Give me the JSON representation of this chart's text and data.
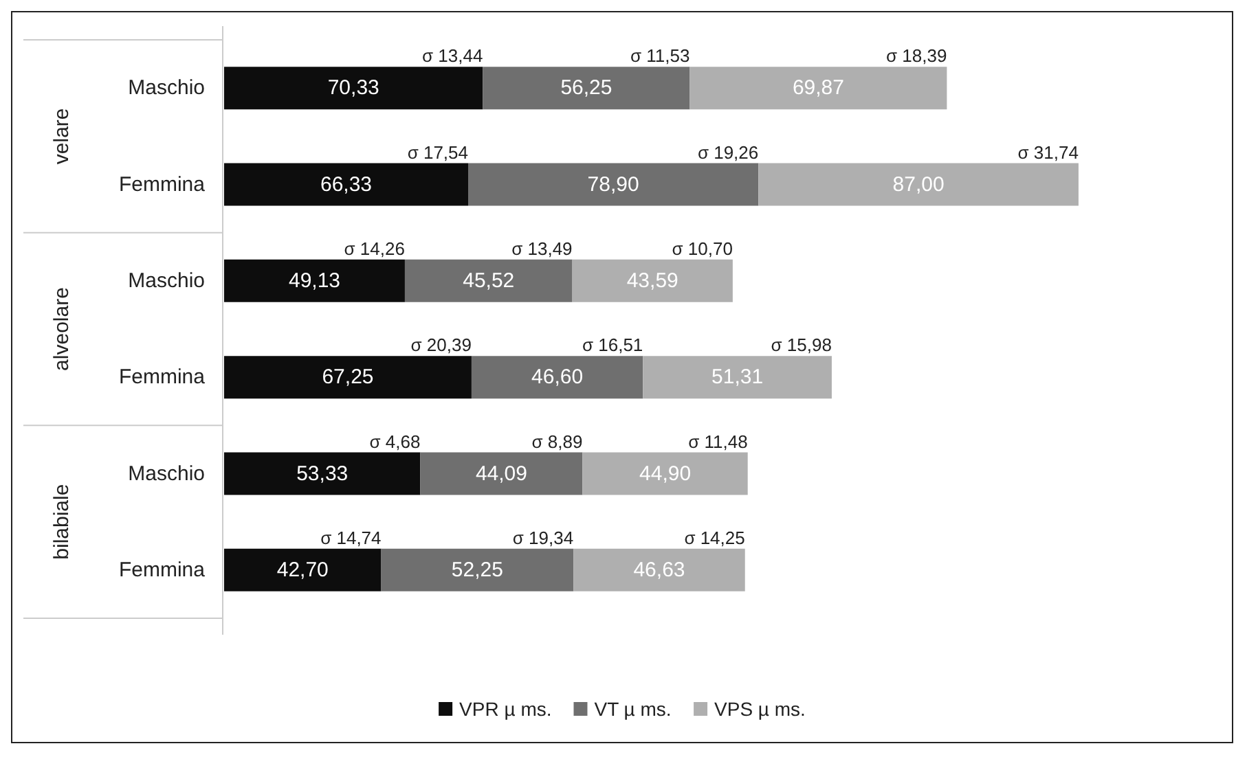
{
  "chart_data": {
    "type": "bar",
    "orientation": "horizontal",
    "stacked": true,
    "categories": [
      "Maschio",
      "Femmina",
      "Maschio",
      "Femmina",
      "Maschio",
      "Femmina"
    ],
    "series": [
      {
        "name": "VPR µ ms.",
        "color": "#0d0d0d",
        "values": [
          70.33,
          66.33,
          49.13,
          67.25,
          53.33,
          42.7
        ],
        "value_labels": [
          "70,33",
          "66,33",
          "49,13",
          "67,25",
          "53,33",
          "42,70"
        ]
      },
      {
        "name": "VT µ ms.",
        "color": "#6f6f6f",
        "values": [
          56.25,
          78.9,
          45.52,
          46.6,
          44.09,
          52.25
        ],
        "value_labels": [
          "56,25",
          "78,90",
          "45,52",
          "46,60",
          "44,09",
          "52,25"
        ]
      },
      {
        "name": "VPS µ ms.",
        "color": "#afafaf",
        "values": [
          69.87,
          87.0,
          43.59,
          51.31,
          44.9,
          46.63
        ],
        "value_labels": [
          "69,87",
          "87,00",
          "43,59",
          "51,31",
          "44,90",
          "46,63"
        ]
      }
    ],
    "annotations": [
      "velare",
      "alveolare",
      "bilabiale",
      "σ 13,44",
      "σ 11,53",
      "σ 18,39",
      "σ 17,54",
      "σ 19,26",
      "σ 31,74",
      "σ 14,26",
      "σ 13,49",
      "σ 10,70",
      "σ 20,39",
      "σ 16,51",
      "σ 15,98",
      "σ 4,68",
      "σ 8,89",
      "σ 11,48",
      "σ 14,74",
      "σ 19,34",
      "σ 14,25"
    ],
    "grid": false,
    "legend": "bottom"
  }
}
